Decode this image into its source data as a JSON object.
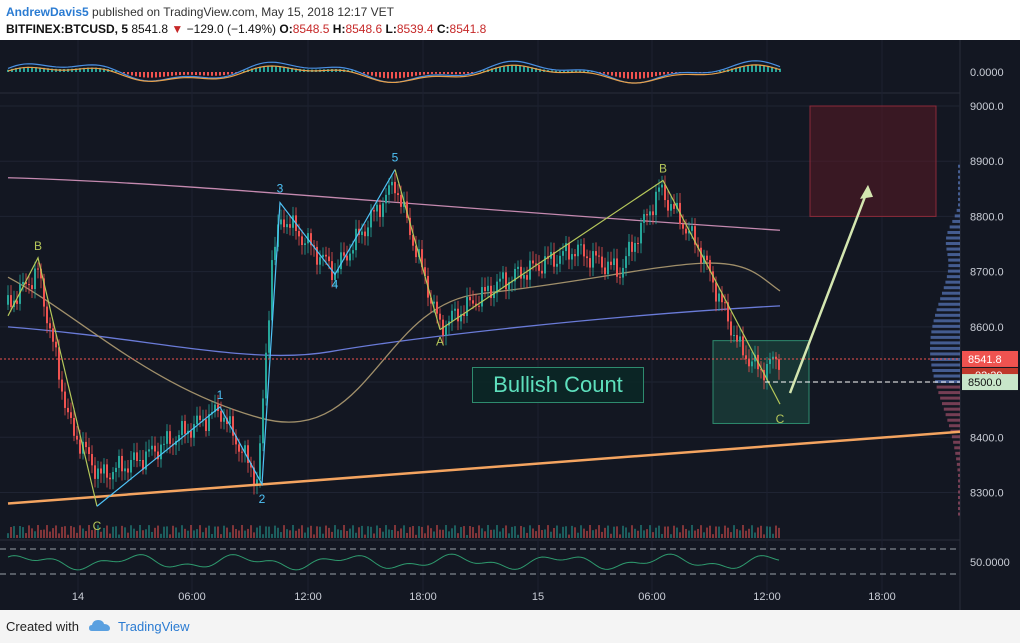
{
  "header": {
    "author": "AndrewDavis5",
    "published": "published on TradingView.com, May 15, 2018 12:17 VET",
    "symbol": "BITFINEX:BTCUSD, 5",
    "last": "8541.8",
    "change": "−129.0 (−1.49%)",
    "open_label": "O:",
    "open": "8548.5",
    "high_label": "H:",
    "high": "8548.6",
    "low_label": "L:",
    "low": "8539.4",
    "close_label": "C:",
    "close": "8541.8"
  },
  "annotation": {
    "text": "Bullish Count"
  },
  "footer": {
    "created": "Created with",
    "brand": "TradingView"
  },
  "colors": {
    "background": "#131722",
    "up": "#26a69a",
    "down": "#ef5350",
    "trendline": "#f4a460",
    "wave_abc": "#b5c75a",
    "wave_impulse": "#4fc3f7",
    "ma_slow": "#c58ab0",
    "ma_mid": "#6a7bd8",
    "ma_fast": "#a08f6a",
    "target_box": "#5a1a24",
    "arrow": "#d4e6b0"
  },
  "chart_data": {
    "type": "candlestick",
    "symbol": "BITFINEX:BTCUSD",
    "timeframe": "5",
    "price_axis": {
      "ticks": [
        8300,
        8400,
        8500,
        8600,
        8700,
        8800,
        8900,
        9000
      ],
      "tick_labels": [
        "8300.0",
        "8400.0",
        "8500.0",
        "8600.0",
        "8700.0",
        "8800.0",
        "8900.0",
        "9000.0"
      ],
      "range": [
        8220,
        9010
      ]
    },
    "time_axis": {
      "tick_labels": [
        "14",
        "06:00",
        "12:00",
        "18:00",
        "15",
        "06:00",
        "12:00",
        "18:00"
      ]
    },
    "last_price_label": "8541.8",
    "countdown_label": "02:29",
    "level_label": "8500.0",
    "oscillator_top": {
      "label": "0.0000"
    },
    "oscillator_bottom": {
      "label": "50.0000"
    },
    "wave_labels": [
      {
        "text": "B",
        "price": 8725,
        "series": "abc"
      },
      {
        "text": "C",
        "price": 8265,
        "series": "abc"
      },
      {
        "text": "1",
        "price": 8455,
        "series": "impulse"
      },
      {
        "text": "2",
        "price": 8310,
        "series": "impulse"
      },
      {
        "text": "3",
        "price": 8825,
        "series": "impulse"
      },
      {
        "text": "4",
        "price": 8695,
        "series": "impulse"
      },
      {
        "text": "5",
        "price": 8885,
        "series": "impulse"
      },
      {
        "text": "A",
        "price": 8595,
        "series": "abc"
      },
      {
        "text": "B",
        "price": 8865,
        "series": "abc"
      },
      {
        "text": "C",
        "price": 8455,
        "series": "abc"
      }
    ],
    "target_zone": {
      "price_top": 9000,
      "price_bottom": 8800
    },
    "support_zone": {
      "price_top": 8575,
      "price_bottom": 8425
    }
  }
}
